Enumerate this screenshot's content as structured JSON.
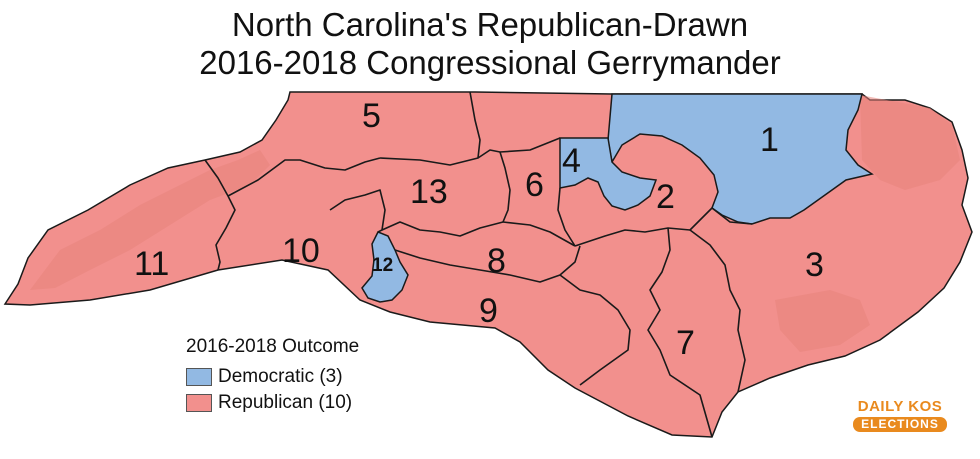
{
  "title": {
    "line1": "North Carolina's Republican-Drawn",
    "line2": "2016-2018 Congressional Gerrymander"
  },
  "colors": {
    "democratic": "#92b9e3",
    "republican": "#f2908d",
    "republican_terrain": "#e8837b",
    "border": "#1a1a1a",
    "ocean": "#ffffff",
    "brand": "#e98a1e"
  },
  "legend": {
    "title": "2016-2018 Outcome",
    "items": [
      {
        "label": "Democratic (3)",
        "party": "democratic"
      },
      {
        "label": "Republican (10)",
        "party": "republican"
      }
    ]
  },
  "districts": [
    {
      "number": "1",
      "party": "democratic"
    },
    {
      "number": "2",
      "party": "republican"
    },
    {
      "number": "3",
      "party": "republican"
    },
    {
      "number": "4",
      "party": "democratic"
    },
    {
      "number": "5",
      "party": "republican"
    },
    {
      "number": "6",
      "party": "republican"
    },
    {
      "number": "7",
      "party": "republican"
    },
    {
      "number": "8",
      "party": "republican"
    },
    {
      "number": "9",
      "party": "republican"
    },
    {
      "number": "10",
      "party": "republican"
    },
    {
      "number": "11",
      "party": "republican"
    },
    {
      "number": "12",
      "party": "democratic"
    },
    {
      "number": "13",
      "party": "republican"
    }
  ],
  "brand": {
    "top": "DAILY KOS",
    "bottom": "ELECTIONS"
  }
}
